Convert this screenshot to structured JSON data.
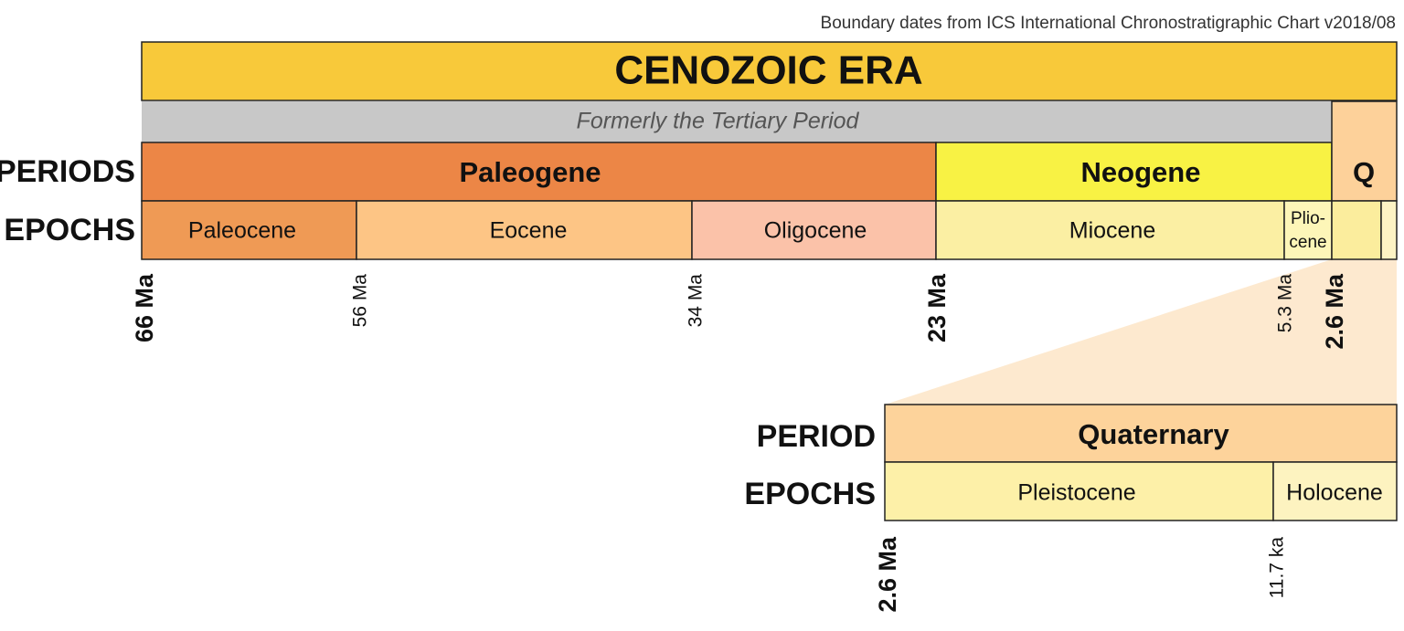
{
  "source_note": "Boundary dates from ICS International Chronostratigraphic Chart v2018/08",
  "era": "CENOZOIC ERA",
  "tertiary_note": "Formerly the Tertiary Period",
  "row_labels": {
    "periods": "PERIODS",
    "epochs": "EPOCHS"
  },
  "periods": [
    "Paleogene",
    "Neogene",
    "Q"
  ],
  "epochs": [
    "Paleocene",
    "Eocene",
    "Oligocene",
    "Miocene",
    [
      "Plio-",
      "cene"
    ]
  ],
  "boundaries": [
    "66 Ma",
    "56 Ma",
    "34 Ma",
    "23 Ma",
    "5.3 Ma",
    "2.6 Ma"
  ],
  "inset": {
    "period_label": "PERIOD",
    "epochs_label": "EPOCHS",
    "period": "Quaternary",
    "epochs": [
      "Pleistocene",
      "Holocene"
    ],
    "boundaries": [
      "2.6 Ma",
      "11.7 ka"
    ]
  }
}
